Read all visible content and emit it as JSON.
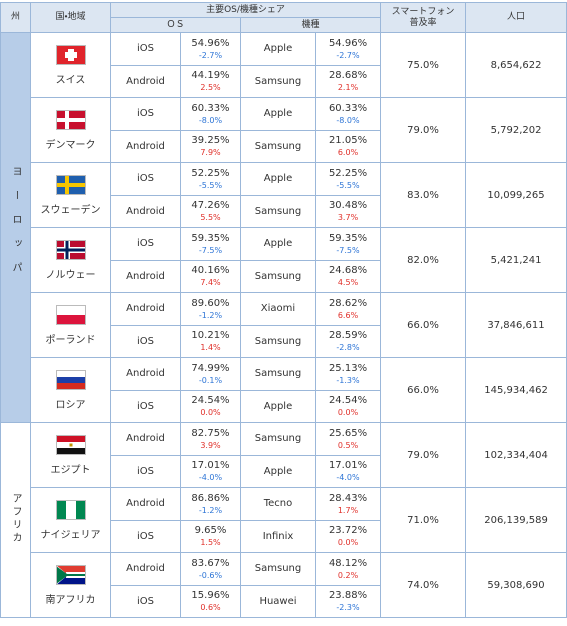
{
  "header": {
    "region": "州",
    "country": "国・地域",
    "share": "主要OS/機種シェア",
    "os": "ＯＳ",
    "model": "機種",
    "penetration": [
      "スマートフォン",
      "普及率"
    ],
    "population": "人口"
  },
  "regions": [
    {
      "name": "ヨーロッパ",
      "countries": [
        {
          "name": "スイス",
          "rows": [
            {
              "os": "iOS",
              "os_share": "54.96%",
              "os_change": "-2.7%",
              "model": "Apple",
              "model_share": "54.96%",
              "model_change": "-2.7%"
            },
            {
              "os": "Android",
              "os_share": "44.19%",
              "os_change": "2.5%",
              "model": "Samsung",
              "model_share": "28.68%",
              "model_change": "2.1%"
            }
          ],
          "penetration": "75.0%",
          "population": "8,654,622"
        },
        {
          "name": "デンマーク",
          "rows": [
            {
              "os": "iOS",
              "os_share": "60.33%",
              "os_change": "-8.0%",
              "model": "Apple",
              "model_share": "60.33%",
              "model_change": "-8.0%"
            },
            {
              "os": "Android",
              "os_share": "39.25%",
              "os_change": "7.9%",
              "model": "Samsung",
              "model_share": "21.05%",
              "model_change": "6.0%"
            }
          ],
          "penetration": "79.0%",
          "population": "5,792,202"
        },
        {
          "name": "スウェーデン",
          "rows": [
            {
              "os": "iOS",
              "os_share": "52.25%",
              "os_change": "-5.5%",
              "model": "Apple",
              "model_share": "52.25%",
              "model_change": "-5.5%"
            },
            {
              "os": "Android",
              "os_share": "47.26%",
              "os_change": "5.5%",
              "model": "Samsung",
              "model_share": "30.48%",
              "model_change": "3.7%"
            }
          ],
          "penetration": "83.0%",
          "population": "10,099,265"
        },
        {
          "name": "ノルウェー",
          "rows": [
            {
              "os": "iOS",
              "os_share": "59.35%",
              "os_change": "-7.5%",
              "model": "Apple",
              "model_share": "59.35%",
              "model_change": "-7.5%"
            },
            {
              "os": "Android",
              "os_share": "40.16%",
              "os_change": "7.4%",
              "model": "Samsung",
              "model_share": "24.68%",
              "model_change": "4.5%"
            }
          ],
          "penetration": "82.0%",
          "population": "5,421,241"
        },
        {
          "name": "ポーランド",
          "rows": [
            {
              "os": "Android",
              "os_share": "89.60%",
              "os_change": "-1.2%",
              "model": "Xiaomi",
              "model_share": "28.62%",
              "model_change": "6.6%"
            },
            {
              "os": "iOS",
              "os_share": "10.21%",
              "os_change": "1.4%",
              "model": "Samsung",
              "model_share": "28.59%",
              "model_change": "-2.8%"
            }
          ],
          "penetration": "66.0%",
          "population": "37,846,611"
        },
        {
          "name": "ロシア",
          "rows": [
            {
              "os": "Android",
              "os_share": "74.99%",
              "os_change": "-0.1%",
              "model": "Samsung",
              "model_share": "25.13%",
              "model_change": "-1.3%"
            },
            {
              "os": "iOS",
              "os_share": "24.54%",
              "os_change": "0.0%",
              "model": "Apple",
              "model_share": "24.54%",
              "model_change": "0.0%"
            }
          ],
          "penetration": "66.0%",
          "population": "145,934,462"
        }
      ]
    },
    {
      "name": "アフリカ",
      "countries": [
        {
          "name": "エジプト",
          "rows": [
            {
              "os": "Android",
              "os_share": "82.75%",
              "os_change": "3.9%",
              "model": "Samsung",
              "model_share": "25.65%",
              "model_change": "0.5%"
            },
            {
              "os": "iOS",
              "os_share": "17.01%",
              "os_change": "-4.0%",
              "model": "Apple",
              "model_share": "17.01%",
              "model_change": "-4.0%"
            }
          ],
          "penetration": "79.0%",
          "population": "102,334,404"
        },
        {
          "name": "ナイジェリア",
          "rows": [
            {
              "os": "Android",
              "os_share": "86.86%",
              "os_change": "-1.2%",
              "model": "Tecno",
              "model_share": "28.43%",
              "model_change": "1.7%"
            },
            {
              "os": "iOS",
              "os_share": "9.65%",
              "os_change": "1.5%",
              "model": "Infinix",
              "model_share": "23.72%",
              "model_change": "0.0%"
            }
          ],
          "penetration": "71.0%",
          "population": "206,139,589"
        },
        {
          "name": "南アフリカ",
          "rows": [
            {
              "os": "Android",
              "os_share": "83.67%",
              "os_change": "-0.6%",
              "model": "Samsung",
              "model_share": "48.12%",
              "model_change": "0.2%"
            },
            {
              "os": "iOS",
              "os_share": "15.96%",
              "os_change": "0.6%",
              "model": "Huawei",
              "model_share": "23.88%",
              "model_change": "-2.3%"
            }
          ],
          "penetration": "74.0%",
          "population": "59,308,690"
        }
      ]
    }
  ]
}
